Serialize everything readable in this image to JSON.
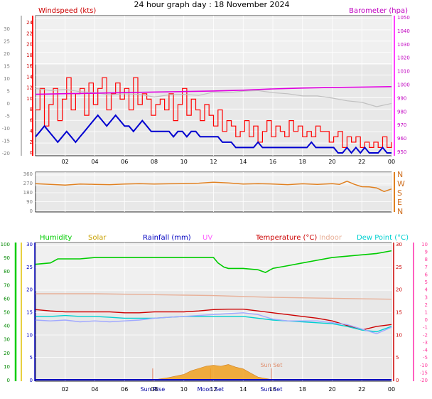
{
  "page": {
    "title": "24 hour graph day : 18 November 2024"
  },
  "chart_data": [
    {
      "id": "wind-baro",
      "type": "line",
      "panel_bg": "#e8e8e8",
      "x_ticks": [
        "02",
        "04",
        "06",
        "08",
        "10",
        "12",
        "14",
        "16",
        "18",
        "20",
        "22",
        "00"
      ],
      "left_axis_label": "Windspeed (kts)",
      "right_axis_label": "Barometer (hpa)",
      "left_ticks": [
        "24",
        "22",
        "20",
        "18",
        "16",
        "14",
        "12",
        "10",
        "8",
        "6",
        "4",
        "2",
        "0"
      ],
      "left_range": [
        0,
        25
      ],
      "outer_left_ticks": [
        "30",
        "25",
        "20",
        "15",
        "10",
        "5",
        "0",
        "-5",
        "-10",
        "-15",
        "-20"
      ],
      "right_ticks": [
        "1050",
        "1040",
        "1030",
        "1020",
        "1010",
        "1000",
        "990",
        "980",
        "970",
        "960",
        "950"
      ],
      "right_range": [
        945,
        1051
      ],
      "series": [
        {
          "name": "Wind gust",
          "color": "#ff0000",
          "axis": "left",
          "x": [
            0.0,
            0.3,
            0.6,
            0.9,
            1.2,
            1.5,
            1.8,
            2.1,
            2.4,
            2.7,
            3.0,
            3.3,
            3.6,
            3.9,
            4.2,
            4.5,
            4.8,
            5.1,
            5.4,
            5.7,
            6.0,
            6.3,
            6.6,
            6.9,
            7.2,
            7.5,
            7.8,
            8.1,
            8.4,
            8.7,
            9.0,
            9.3,
            9.6,
            9.9,
            10.2,
            10.5,
            10.8,
            11.1,
            11.4,
            11.7,
            12.0,
            12.3,
            12.6,
            12.9,
            13.2,
            13.5,
            13.8,
            14.1,
            14.4,
            14.7,
            15.0,
            15.3,
            15.6,
            15.9,
            16.2,
            16.5,
            16.8,
            17.1,
            17.4,
            17.7,
            18.0,
            18.3,
            18.6,
            18.9,
            19.2,
            19.5,
            19.8,
            20.1,
            20.4,
            20.7,
            21.0,
            21.3,
            21.6,
            21.9,
            22.2,
            22.5,
            22.8,
            23.1,
            23.4,
            23.7,
            24.0
          ],
          "y": [
            8,
            12,
            5,
            9,
            12,
            6,
            10,
            14,
            8,
            11,
            12,
            7,
            13,
            9,
            12,
            14,
            8,
            11,
            13,
            10,
            12,
            8,
            14,
            9,
            11,
            10,
            7,
            9,
            10,
            8,
            11,
            6,
            9,
            12,
            7,
            10,
            8,
            6,
            9,
            7,
            5,
            8,
            4,
            6,
            5,
            3,
            4,
            6,
            3,
            5,
            2,
            4,
            6,
            3,
            5,
            4,
            3,
            6,
            4,
            5,
            3,
            4,
            3,
            5,
            4,
            4,
            2,
            3,
            4,
            1,
            3,
            2,
            3,
            1,
            2,
            1,
            2,
            1,
            3,
            1,
            2
          ]
        },
        {
          "name": "Wind speed",
          "color": "#0000d0",
          "axis": "left",
          "x": [
            0.0,
            0.3,
            0.6,
            0.9,
            1.2,
            1.5,
            1.8,
            2.1,
            2.4,
            2.7,
            3.0,
            3.3,
            3.6,
            3.9,
            4.2,
            4.5,
            4.8,
            5.1,
            5.4,
            5.7,
            6.0,
            6.3,
            6.6,
            6.9,
            7.2,
            7.5,
            7.8,
            8.1,
            8.4,
            8.7,
            9.0,
            9.3,
            9.6,
            9.9,
            10.2,
            10.5,
            10.8,
            11.1,
            11.4,
            11.7,
            12.0,
            12.3,
            12.6,
            12.9,
            13.2,
            13.5,
            13.8,
            14.1,
            14.4,
            14.7,
            15.0,
            15.3,
            15.6,
            15.9,
            16.2,
            16.5,
            16.8,
            17.1,
            17.4,
            17.7,
            18.0,
            18.3,
            18.6,
            18.9,
            19.2,
            19.5,
            19.8,
            20.1,
            20.4,
            20.7,
            21.0,
            21.3,
            21.6,
            21.9,
            22.2,
            22.5,
            22.8,
            23.1,
            23.4,
            23.7,
            24.0
          ],
          "y": [
            3,
            4,
            5,
            4,
            3,
            2,
            3,
            4,
            3,
            2,
            3,
            4,
            5,
            6,
            7,
            6,
            5,
            6,
            7,
            6,
            5,
            5,
            4,
            5,
            6,
            5,
            4,
            4,
            4,
            4,
            4,
            3,
            4,
            4,
            3,
            4,
            4,
            3,
            3,
            3,
            3,
            3,
            2,
            2,
            2,
            1,
            1,
            1,
            1,
            1,
            2,
            1,
            1,
            1,
            1,
            1,
            1,
            1,
            1,
            1,
            1,
            1,
            2,
            1,
            1,
            1,
            1,
            1,
            0,
            0,
            1,
            0,
            1,
            0,
            1,
            0,
            0,
            0,
            1,
            0,
            0
          ]
        },
        {
          "name": "Wind direction trace",
          "color": "#c0c0c0",
          "axis": "left",
          "x": [
            0,
            1,
            2,
            3,
            4,
            5,
            6,
            7,
            8,
            9,
            10,
            11,
            12,
            13,
            14,
            15,
            16,
            17,
            18,
            19,
            20,
            21,
            22,
            23,
            24
          ],
          "y": [
            12.0,
            11.6,
            11.8,
            11.4,
            11.2,
            10.8,
            11.0,
            10.9,
            10.4,
            10.8,
            10.9,
            10.7,
            11.3,
            11.2,
            11.5,
            11.6,
            11.2,
            11.0,
            10.6,
            10.6,
            10.2,
            9.7,
            9.4,
            8.6,
            9.2
          ]
        },
        {
          "name": "Barometer",
          "color": "#e000e0",
          "axis": "right",
          "x": [
            0,
            2,
            4,
            6,
            8,
            10,
            12,
            14,
            16,
            18,
            20,
            22,
            24
          ],
          "y": [
            991.5,
            992.0,
            992.3,
            992.8,
            993.2,
            993.6,
            994.0,
            994.6,
            995.6,
            996.2,
            996.7,
            997.0,
            997.3
          ]
        }
      ]
    },
    {
      "id": "wind-direction",
      "type": "line",
      "panel_bg": "#e8e8e8",
      "x_ticks": [
        "02",
        "04",
        "06",
        "08",
        "10",
        "12",
        "14",
        "16",
        "18",
        "20",
        "22",
        "00"
      ],
      "left_ticks": [
        "360",
        "270",
        "180",
        "90",
        "0"
      ],
      "left_range": [
        0,
        360
      ],
      "right_ticks": [
        "N",
        "W",
        "S",
        "E",
        "N"
      ],
      "series": [
        {
          "name": "Wind direction",
          "color": "#e08020",
          "x": [
            0,
            1,
            2,
            3,
            4,
            5,
            6,
            7,
            8,
            9,
            10,
            11,
            12,
            13,
            14,
            15,
            16,
            17,
            18,
            19,
            20,
            20.5,
            21,
            21.5,
            22,
            22.5,
            23,
            23.5,
            24
          ],
          "y": [
            262,
            255,
            248,
            258,
            255,
            252,
            258,
            262,
            258,
            260,
            262,
            266,
            275,
            268,
            258,
            262,
            258,
            252,
            260,
            255,
            262,
            255,
            285,
            255,
            232,
            230,
            220,
            185,
            210
          ]
        }
      ]
    },
    {
      "id": "temp-hum",
      "type": "line",
      "panel_bg": "#e8e8e8",
      "x_ticks": [
        "02",
        "04",
        "06",
        "08",
        "10",
        "12",
        "14",
        "16",
        "18",
        "20",
        "22",
        "00"
      ],
      "legend": [
        {
          "label": "Humidity",
          "color": "#00cc00"
        },
        {
          "label": "Solar",
          "color": "#c8a000"
        },
        {
          "label": "Rainfall (mm)",
          "color": "#0000c0"
        },
        {
          "label": "UV",
          "color": "#ff60ff"
        },
        {
          "label": "Temperature (°C)",
          "color": "#cc0000"
        },
        {
          "label": "Indoor",
          "color": "#e8b098"
        },
        {
          "label": "Dew Point (°C)",
          "color": "#00d0d0"
        }
      ],
      "humidity_ticks": [
        "100",
        "90",
        "80",
        "70",
        "60",
        "50",
        "40",
        "30",
        "20",
        "10",
        "0"
      ],
      "humidity_range": [
        0,
        100
      ],
      "rain_ticks": [
        "30",
        "25",
        "20",
        "15",
        "10",
        "5",
        "0"
      ],
      "temp_ticks": [
        "30",
        "25",
        "20",
        "15",
        "10",
        "5",
        "0"
      ],
      "temp_range": [
        0,
        30
      ],
      "outer_right_ticks": [
        "10",
        "9",
        "8",
        "7",
        "6",
        "5",
        "4",
        "3",
        "2",
        "1",
        "0",
        "-1",
        "-2",
        "-3",
        "-4",
        "-5",
        "-10",
        "-15",
        "-20"
      ],
      "events": [
        {
          "label": "Sun Rise",
          "x": 7.9
        },
        {
          "label": "Moon Set",
          "x": 11.8
        },
        {
          "label": "Sun Set",
          "x": 15.9
        }
      ],
      "series": [
        {
          "name": "Humidity",
          "color": "#00cc00",
          "axis": "humidity",
          "x": [
            0,
            1,
            1.5,
            2,
            3,
            4,
            5,
            6,
            7,
            8,
            9,
            10,
            11,
            12,
            12.3,
            12.7,
            13,
            14,
            15,
            15.5,
            16,
            17,
            18,
            19,
            20,
            21,
            22,
            23,
            24
          ],
          "y": [
            85,
            86,
            89,
            89,
            89,
            90,
            90,
            90,
            90,
            90,
            90,
            90,
            90,
            90,
            86,
            83,
            82,
            82,
            81,
            79,
            82,
            84,
            86,
            88,
            90,
            91,
            92,
            93,
            95
          ]
        },
        {
          "name": "Indoor",
          "color": "#e8b098",
          "axis": "temp",
          "x": [
            0,
            4,
            8,
            12,
            16,
            20,
            24
          ],
          "y": [
            19.0,
            19.0,
            18.8,
            18.6,
            18.2,
            18.0,
            17.8
          ]
        },
        {
          "name": "Temperature",
          "color": "#cc0000",
          "axis": "temp",
          "x": [
            0,
            1,
            2,
            3,
            4,
            5,
            6,
            7,
            8,
            9,
            10,
            11,
            12,
            13,
            14,
            15,
            16,
            17,
            18,
            19,
            20,
            21,
            22,
            23,
            24
          ],
          "y": [
            15.5,
            15.2,
            15.0,
            15.0,
            15.0,
            15.0,
            14.8,
            14.8,
            15.0,
            15.0,
            15.0,
            15.2,
            15.5,
            15.6,
            15.6,
            15.2,
            14.8,
            14.4,
            14.0,
            13.6,
            13.0,
            12.0,
            11.0,
            11.8,
            12.2
          ]
        },
        {
          "name": "Dew Point",
          "color": "#00d0d0",
          "axis": "temp",
          "x": [
            0,
            1,
            2,
            3,
            4,
            5,
            6,
            7,
            8,
            9,
            10,
            11,
            12,
            13,
            14,
            15,
            16,
            17,
            18,
            19,
            20,
            21,
            22,
            23,
            24
          ],
          "y": [
            14.0,
            14.0,
            14.2,
            14.0,
            14.0,
            13.8,
            13.6,
            13.6,
            13.6,
            13.8,
            14.0,
            14.0,
            14.0,
            14.0,
            14.0,
            13.6,
            13.2,
            13.0,
            12.8,
            12.6,
            12.4,
            11.8,
            11.0,
            10.6,
            11.8
          ]
        },
        {
          "name": "Dew trace",
          "color": "#a0a8ff",
          "axis": "temp",
          "x": [
            0,
            1,
            2,
            3,
            4,
            5,
            6,
            7,
            8,
            9,
            10,
            11,
            12,
            13,
            14,
            15,
            16,
            17,
            18,
            19,
            20,
            21,
            22,
            23,
            24
          ],
          "y": [
            13.2,
            13.0,
            13.2,
            12.8,
            13.0,
            12.8,
            13.0,
            13.2,
            13.6,
            13.8,
            14.0,
            14.2,
            14.4,
            14.6,
            14.8,
            14.4,
            13.4,
            13.0,
            13.0,
            13.0,
            12.6,
            12.2,
            11.2,
            10.2,
            11.6
          ]
        },
        {
          "name": "Solar",
          "color": "#f0a020",
          "axis": "temp",
          "area": true,
          "x": [
            8,
            9,
            10,
            10.5,
            11,
            11.5,
            12,
            12.5,
            13,
            13.5,
            14,
            14.5,
            15,
            16
          ],
          "y": [
            0,
            0.5,
            1.2,
            2.0,
            2.5,
            3.0,
            3.2,
            3.0,
            3.4,
            2.8,
            2.4,
            1.5,
            0.6,
            0
          ]
        },
        {
          "name": "Rainfall",
          "color": "#0000c0",
          "axis": "temp",
          "x": [
            0,
            24
          ],
          "y": [
            0,
            0
          ]
        }
      ]
    }
  ]
}
